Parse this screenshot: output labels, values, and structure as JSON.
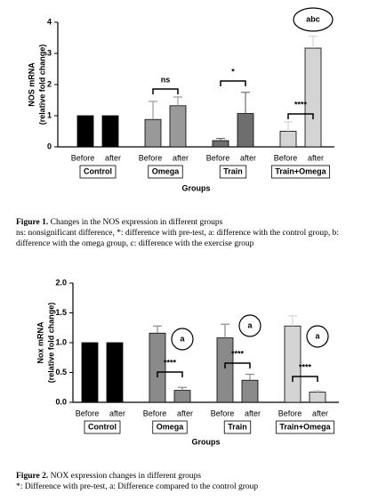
{
  "chart_data": [
    {
      "type": "bar",
      "y_label": [
        "NOS mRNA",
        "(relative fold change)"
      ],
      "x_label": "Groups",
      "categories": [
        "Control",
        "Omega",
        "Train",
        "Train+Omega"
      ],
      "group_colors": [
        "#000000",
        "#999999",
        "#6e6e6e",
        "#d4d4d4"
      ],
      "series": [
        {
          "name": "Before",
          "values": [
            1,
            0.88,
            0.2,
            0.5
          ],
          "errors": [
            0,
            0.58,
            0.07,
            0.3
          ]
        },
        {
          "name": "after",
          "values": [
            1,
            1.32,
            1.07,
            3.17
          ],
          "errors": [
            0,
            0.28,
            0.68,
            0.38
          ]
        }
      ],
      "ylim": [
        0,
        4
      ],
      "yticks": [
        0,
        1,
        2,
        3,
        4
      ],
      "annotations": [
        {
          "text": "ns",
          "group": 1
        },
        {
          "text": "*",
          "group": 2
        },
        {
          "text": "****",
          "group": 3
        },
        {
          "text": "abc",
          "group": 3
        }
      ],
      "caption_label": "Figure 1.",
      "caption_text": "Changes in the NOS expression in different groups",
      "caption_notes": "ns: nonsignificant difference, *: difference with pre-test, a: difference with the control group, b: difference with the omega group, c: difference with the exercise group"
    },
    {
      "type": "bar",
      "y_label": [
        "Nox mRNA",
        "(relative fold change)"
      ],
      "x_label": "Groups",
      "categories": [
        "Control",
        "Omega",
        "Train",
        "Train+Omega"
      ],
      "group_colors": [
        "#000000",
        "#8a8a8a",
        "#8a8a8a",
        "#d4d4d4"
      ],
      "series": [
        {
          "name": "Before",
          "values": [
            1,
            1.16,
            1.08,
            1.28
          ],
          "errors": [
            0,
            0.12,
            0.23,
            0.17
          ]
        },
        {
          "name": "after",
          "values": [
            1,
            0.2,
            0.37,
            0.17
          ],
          "errors": [
            0,
            0.05,
            0.1,
            0.03
          ]
        }
      ],
      "ylim": [
        0,
        2
      ],
      "yticks": [
        {
          "value": 0,
          "label": "0.0"
        },
        {
          "value": 0.5,
          "label": "0.5"
        },
        {
          "value": 1,
          "label": "1.0"
        },
        {
          "value": 1.5,
          "label": "1.5"
        },
        {
          "value": 2,
          "label": "2.0"
        }
      ],
      "annotations": [
        {
          "text": "****",
          "group": 1
        },
        {
          "text": "****",
          "group": 2
        },
        {
          "text": "****",
          "group": 3
        },
        {
          "text": "a",
          "group": 1
        },
        {
          "text": "a",
          "group": 2
        },
        {
          "text": "a",
          "group": 3
        }
      ],
      "caption_label": "Figure 2.",
      "caption_text": "NOX expression changes in different groups",
      "caption_notes": "*: Difference with pre-test, a: Difference compared to the control group"
    }
  ]
}
